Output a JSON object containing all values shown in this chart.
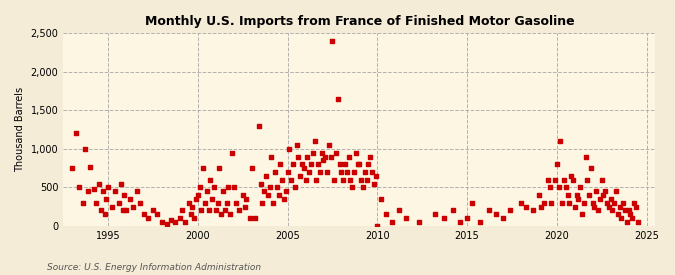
{
  "title": "Monthly U.S. Imports from France of Finished Motor Gasoline",
  "ylabel": "Thousand Barrels",
  "source": "Source: U.S. Energy Information Administration",
  "background_color": "#f5ecd7",
  "plot_background_color": "#fdf6e3",
  "marker_color": "#cc0000",
  "marker_size": 5,
  "ylim": [
    0,
    2500
  ],
  "yticks": [
    0,
    500,
    1000,
    1500,
    2000,
    2500
  ],
  "ytick_labels": [
    "0",
    "500",
    "1,000",
    "1,500",
    "2,000",
    "2,500"
  ],
  "xlim_start": 1992.5,
  "xlim_end": 2025.5,
  "xticks": [
    1995,
    2000,
    2005,
    2010,
    2015,
    2020,
    2025
  ],
  "data": [
    [
      1993.0,
      750
    ],
    [
      1993.2,
      1200
    ],
    [
      1993.4,
      500
    ],
    [
      1993.6,
      300
    ],
    [
      1993.7,
      1000
    ],
    [
      1993.9,
      450
    ],
    [
      1994.0,
      760
    ],
    [
      1994.2,
      480
    ],
    [
      1994.3,
      300
    ],
    [
      1994.5,
      550
    ],
    [
      1994.6,
      200
    ],
    [
      1994.7,
      450
    ],
    [
      1994.8,
      150
    ],
    [
      1994.9,
      350
    ],
    [
      1995.0,
      500
    ],
    [
      1995.2,
      250
    ],
    [
      1995.4,
      450
    ],
    [
      1995.6,
      300
    ],
    [
      1995.7,
      550
    ],
    [
      1995.8,
      200
    ],
    [
      1995.9,
      400
    ],
    [
      1996.0,
      200
    ],
    [
      1996.2,
      350
    ],
    [
      1996.4,
      250
    ],
    [
      1996.6,
      450
    ],
    [
      1996.8,
      300
    ],
    [
      1997.0,
      150
    ],
    [
      1997.2,
      100
    ],
    [
      1997.5,
      200
    ],
    [
      1997.7,
      150
    ],
    [
      1998.0,
      50
    ],
    [
      1998.3,
      30
    ],
    [
      1998.5,
      80
    ],
    [
      1998.7,
      50
    ],
    [
      1999.0,
      100
    ],
    [
      1999.1,
      200
    ],
    [
      1999.3,
      50
    ],
    [
      1999.5,
      300
    ],
    [
      1999.6,
      150
    ],
    [
      1999.7,
      250
    ],
    [
      1999.8,
      100
    ],
    [
      1999.9,
      350
    ],
    [
      2000.0,
      400
    ],
    [
      2000.1,
      500
    ],
    [
      2000.2,
      200
    ],
    [
      2000.3,
      750
    ],
    [
      2000.4,
      300
    ],
    [
      2000.5,
      450
    ],
    [
      2000.6,
      200
    ],
    [
      2000.7,
      600
    ],
    [
      2000.8,
      350
    ],
    [
      2000.9,
      500
    ],
    [
      2001.0,
      200
    ],
    [
      2001.1,
      300
    ],
    [
      2001.2,
      750
    ],
    [
      2001.3,
      150
    ],
    [
      2001.4,
      450
    ],
    [
      2001.5,
      200
    ],
    [
      2001.6,
      300
    ],
    [
      2001.7,
      500
    ],
    [
      2001.8,
      150
    ],
    [
      2001.9,
      950
    ],
    [
      2002.0,
      500
    ],
    [
      2002.1,
      300
    ],
    [
      2002.3,
      200
    ],
    [
      2002.5,
      400
    ],
    [
      2002.6,
      250
    ],
    [
      2002.7,
      350
    ],
    [
      2002.9,
      100
    ],
    [
      2003.0,
      750
    ],
    [
      2003.2,
      100
    ],
    [
      2003.4,
      1300
    ],
    [
      2003.5,
      550
    ],
    [
      2003.6,
      300
    ],
    [
      2003.7,
      450
    ],
    [
      2003.8,
      650
    ],
    [
      2003.9,
      400
    ],
    [
      2004.0,
      500
    ],
    [
      2004.1,
      900
    ],
    [
      2004.2,
      300
    ],
    [
      2004.3,
      700
    ],
    [
      2004.4,
      500
    ],
    [
      2004.5,
      400
    ],
    [
      2004.6,
      800
    ],
    [
      2004.7,
      600
    ],
    [
      2004.8,
      350
    ],
    [
      2004.9,
      450
    ],
    [
      2005.0,
      700
    ],
    [
      2005.1,
      1000
    ],
    [
      2005.2,
      600
    ],
    [
      2005.3,
      800
    ],
    [
      2005.4,
      500
    ],
    [
      2005.5,
      1050
    ],
    [
      2005.6,
      900
    ],
    [
      2005.7,
      650
    ],
    [
      2005.8,
      800
    ],
    [
      2005.9,
      750
    ],
    [
      2006.0,
      600
    ],
    [
      2006.1,
      900
    ],
    [
      2006.2,
      700
    ],
    [
      2006.3,
      800
    ],
    [
      2006.4,
      950
    ],
    [
      2006.5,
      1100
    ],
    [
      2006.6,
      600
    ],
    [
      2006.7,
      800
    ],
    [
      2006.8,
      700
    ],
    [
      2006.9,
      950
    ],
    [
      2007.0,
      850
    ],
    [
      2007.1,
      900
    ],
    [
      2007.2,
      700
    ],
    [
      2007.3,
      1050
    ],
    [
      2007.4,
      900
    ],
    [
      2007.5,
      2400
    ],
    [
      2007.6,
      600
    ],
    [
      2007.7,
      950
    ],
    [
      2007.8,
      1650
    ],
    [
      2007.9,
      800
    ],
    [
      2008.0,
      700
    ],
    [
      2008.1,
      600
    ],
    [
      2008.2,
      800
    ],
    [
      2008.3,
      700
    ],
    [
      2008.4,
      900
    ],
    [
      2008.5,
      600
    ],
    [
      2008.6,
      500
    ],
    [
      2008.7,
      700
    ],
    [
      2008.8,
      950
    ],
    [
      2008.9,
      800
    ],
    [
      2009.0,
      800
    ],
    [
      2009.1,
      600
    ],
    [
      2009.2,
      500
    ],
    [
      2009.3,
      700
    ],
    [
      2009.4,
      600
    ],
    [
      2009.5,
      800
    ],
    [
      2009.6,
      900
    ],
    [
      2009.7,
      700
    ],
    [
      2009.8,
      550
    ],
    [
      2009.9,
      650
    ],
    [
      2010.0,
      0
    ],
    [
      2010.2,
      350
    ],
    [
      2010.5,
      150
    ],
    [
      2010.8,
      50
    ],
    [
      2011.2,
      200
    ],
    [
      2011.6,
      100
    ],
    [
      2012.3,
      50
    ],
    [
      2013.2,
      150
    ],
    [
      2013.7,
      100
    ],
    [
      2014.2,
      200
    ],
    [
      2014.6,
      50
    ],
    [
      2015.0,
      100
    ],
    [
      2015.3,
      300
    ],
    [
      2015.7,
      50
    ],
    [
      2016.2,
      200
    ],
    [
      2016.6,
      150
    ],
    [
      2017.0,
      100
    ],
    [
      2017.4,
      200
    ],
    [
      2018.0,
      300
    ],
    [
      2018.3,
      250
    ],
    [
      2018.7,
      200
    ],
    [
      2019.0,
      400
    ],
    [
      2019.1,
      250
    ],
    [
      2019.3,
      300
    ],
    [
      2019.5,
      600
    ],
    [
      2019.6,
      500
    ],
    [
      2019.7,
      300
    ],
    [
      2019.9,
      600
    ],
    [
      2020.0,
      800
    ],
    [
      2020.1,
      500
    ],
    [
      2020.2,
      1100
    ],
    [
      2020.3,
      300
    ],
    [
      2020.4,
      600
    ],
    [
      2020.5,
      500
    ],
    [
      2020.6,
      400
    ],
    [
      2020.7,
      300
    ],
    [
      2020.8,
      650
    ],
    [
      2020.9,
      600
    ],
    [
      2021.0,
      250
    ],
    [
      2021.1,
      400
    ],
    [
      2021.2,
      350
    ],
    [
      2021.3,
      500
    ],
    [
      2021.4,
      150
    ],
    [
      2021.5,
      300
    ],
    [
      2021.6,
      900
    ],
    [
      2021.7,
      600
    ],
    [
      2021.8,
      400
    ],
    [
      2021.9,
      750
    ],
    [
      2022.0,
      300
    ],
    [
      2022.1,
      250
    ],
    [
      2022.2,
      450
    ],
    [
      2022.3,
      200
    ],
    [
      2022.4,
      350
    ],
    [
      2022.5,
      600
    ],
    [
      2022.6,
      400
    ],
    [
      2022.7,
      450
    ],
    [
      2022.8,
      300
    ],
    [
      2022.9,
      250
    ],
    [
      2023.0,
      350
    ],
    [
      2023.1,
      200
    ],
    [
      2023.2,
      300
    ],
    [
      2023.3,
      450
    ],
    [
      2023.4,
      150
    ],
    [
      2023.5,
      250
    ],
    [
      2023.6,
      100
    ],
    [
      2023.7,
      300
    ],
    [
      2023.8,
      200
    ],
    [
      2023.9,
      50
    ],
    [
      2024.0,
      200
    ],
    [
      2024.1,
      150
    ],
    [
      2024.2,
      100
    ],
    [
      2024.3,
      300
    ],
    [
      2024.4,
      250
    ],
    [
      2024.5,
      50
    ]
  ]
}
